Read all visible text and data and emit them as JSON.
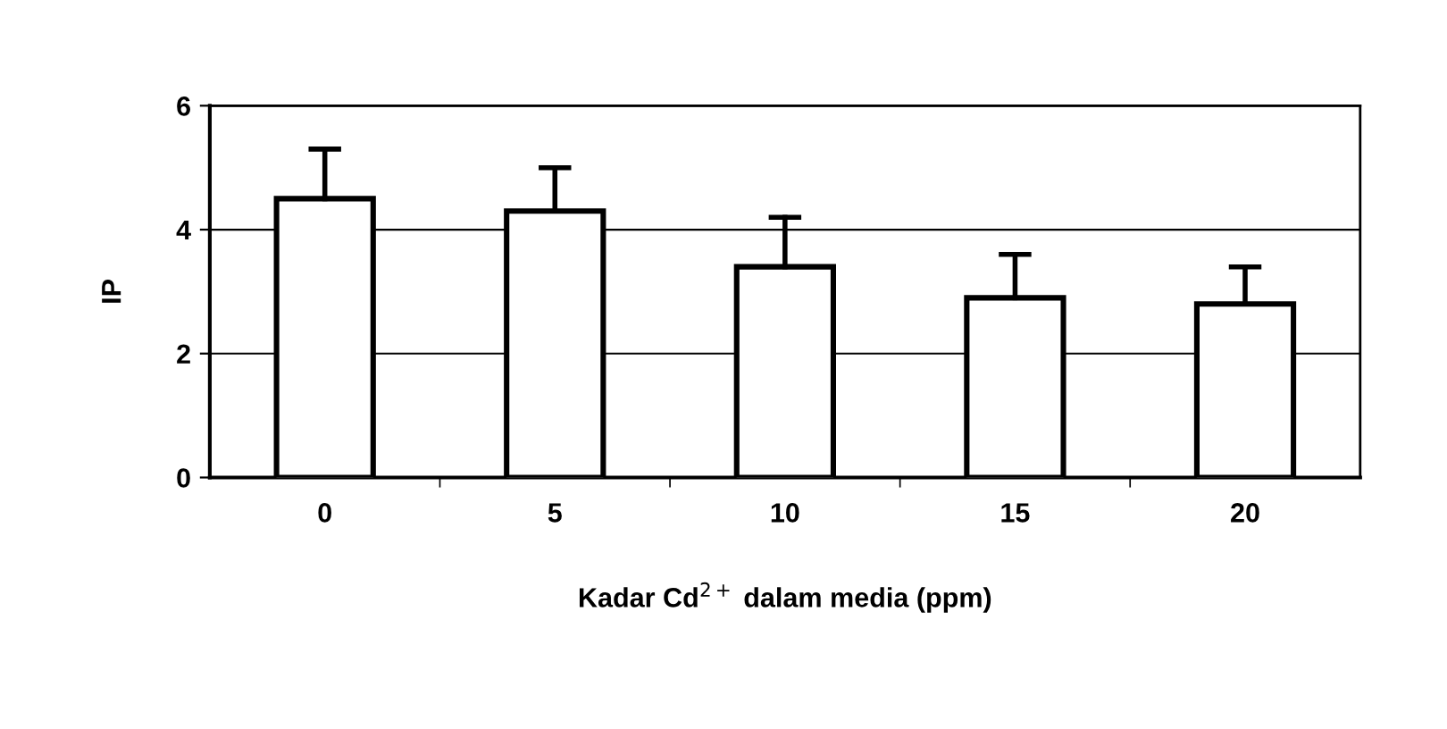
{
  "chart_data": {
    "type": "bar",
    "categories": [
      "0",
      "5",
      "10",
      "15",
      "20"
    ],
    "values": [
      4.5,
      4.3,
      3.4,
      2.9,
      2.8
    ],
    "errors": [
      [
        4.5,
        5.3
      ],
      [
        4.3,
        5.0
      ],
      [
        3.4,
        4.2
      ],
      [
        2.9,
        3.6
      ],
      [
        2.8,
        3.4
      ]
    ],
    "color": "#ffffff",
    "xlabel": "Kadar Cd$^{2+}$ dalam media (ppm)",
    "ylabel": "IP",
    "ylim": [
      0,
      6
    ],
    "yticks": [
      0,
      2,
      4,
      6
    ],
    "grid": "y"
  }
}
